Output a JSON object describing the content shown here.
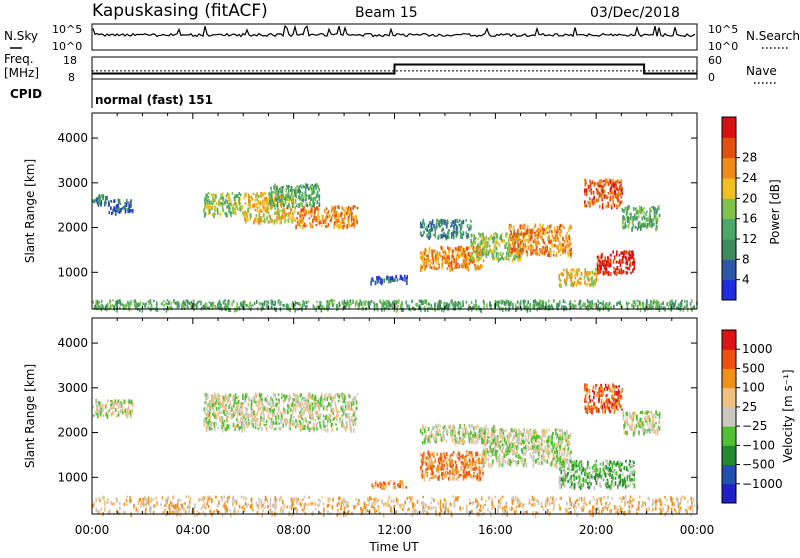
{
  "header": {
    "title": "Kapuskasing (fitACF)",
    "beam": "Beam 15",
    "date": "03/Dec/2018"
  },
  "noise_panel": {
    "left_label": "N.Sky",
    "right_label": "N.Search",
    "left_ticks": [
      "10^5",
      "10^0"
    ],
    "right_ticks": [
      "10^5",
      "10^0"
    ]
  },
  "freq_panel": {
    "left_label_1": "Freq.",
    "left_label_2": "[MHz]",
    "left_ticks": [
      "18",
      "8"
    ],
    "right_label": "Nave",
    "right_ticks": [
      "60",
      "0"
    ],
    "cpid_label": "CPID",
    "cpid_value": "normal (fast) 151"
  },
  "colors": {
    "power": [
      "#1f2be0",
      "#2d57a8",
      "#3d8b5e",
      "#4aa86a",
      "#7dc24a",
      "#f0c020",
      "#f08a18",
      "#e0500e",
      "#d81010"
    ],
    "velocity": [
      "#dc1414",
      "#f0500f",
      "#f09015",
      "#f0c080",
      "#c8c8c0",
      "#50c030",
      "#208a30",
      "#2050b0",
      "#2020c8"
    ]
  },
  "chart_data": [
    {
      "type": "heatmap",
      "name": "power",
      "ylabel": "Slant Range [km]",
      "xlabel": "",
      "x_ticks": [
        "00:00",
        "04:00",
        "08:00",
        "12:00",
        "16:00",
        "20:00",
        "00:00"
      ],
      "xlim": [
        0,
        24
      ],
      "y_ticks": [
        1000,
        2000,
        3000,
        4000
      ],
      "ylim": [
        180,
        4560
      ],
      "colorbar": {
        "label": "Power [dB]",
        "ticks": [
          "4",
          "8",
          "12",
          "16",
          "20",
          "24",
          "28"
        ],
        "range": [
          0,
          32
        ]
      },
      "regions": [
        {
          "x0": 0.0,
          "x1": 0.6,
          "y0": 2550,
          "y1": 2750,
          "level": 2
        },
        {
          "x0": 0.6,
          "x1": 1.6,
          "y0": 2350,
          "y1": 2650,
          "level": 1
        },
        {
          "x0": 4.4,
          "x1": 6.0,
          "y0": 2300,
          "y1": 2800,
          "level": 4
        },
        {
          "x0": 6.0,
          "x1": 8.0,
          "y0": 2150,
          "y1": 2800,
          "level": 5
        },
        {
          "x0": 8.0,
          "x1": 10.5,
          "y0": 2050,
          "y1": 2500,
          "level": 6
        },
        {
          "x0": 7.0,
          "x1": 9.0,
          "y0": 2500,
          "y1": 3000,
          "level": 3
        },
        {
          "x0": 11.0,
          "x1": 12.5,
          "y0": 800,
          "y1": 950,
          "level": 1
        },
        {
          "x0": 13.0,
          "x1": 15.0,
          "y0": 1800,
          "y1": 2200,
          "level": 2
        },
        {
          "x0": 13.0,
          "x1": 15.5,
          "y0": 1100,
          "y1": 1600,
          "level": 6
        },
        {
          "x0": 15.0,
          "x1": 17.0,
          "y0": 1300,
          "y1": 1900,
          "level": 4
        },
        {
          "x0": 16.5,
          "x1": 19.0,
          "y0": 1400,
          "y1": 2100,
          "level": 6
        },
        {
          "x0": 18.5,
          "x1": 20.0,
          "y0": 750,
          "y1": 1100,
          "level": 5
        },
        {
          "x0": 19.5,
          "x1": 21.0,
          "y0": 2500,
          "y1": 3100,
          "level": 7
        },
        {
          "x0": 20.0,
          "x1": 21.5,
          "y0": 1000,
          "y1": 1500,
          "level": 8
        },
        {
          "x0": 21.0,
          "x1": 22.5,
          "y0": 2000,
          "y1": 2500,
          "level": 3
        },
        {
          "x0": 0.0,
          "x1": 24.0,
          "y0": 200,
          "y1": 400,
          "level": 3
        }
      ]
    },
    {
      "type": "heatmap",
      "name": "velocity",
      "ylabel": "Slant Range [km]",
      "xlabel": "Time UT",
      "x_ticks": [
        "00:00",
        "04:00",
        "08:00",
        "12:00",
        "16:00",
        "20:00",
        "00:00"
      ],
      "xlim": [
        0,
        24
      ],
      "y_ticks": [
        1000,
        2000,
        3000,
        4000
      ],
      "ylim": [
        180,
        4560
      ],
      "colorbar": {
        "label": "Velocity [m s⁻¹]",
        "ticks": [
          "1000",
          "500",
          "100",
          "25",
          "−25",
          "−100",
          "−500",
          "−1000"
        ],
        "range": [
          -1200,
          1200
        ]
      },
      "regions": [
        {
          "x0": 0.0,
          "x1": 1.6,
          "y0": 2400,
          "y1": 2750,
          "level": 4
        },
        {
          "x0": 4.4,
          "x1": 10.5,
          "y0": 2100,
          "y1": 2900,
          "level": 4
        },
        {
          "x0": 11.0,
          "x1": 12.5,
          "y0": 800,
          "y1": 950,
          "level": 2
        },
        {
          "x0": 13.0,
          "x1": 16.0,
          "y0": 1800,
          "y1": 2200,
          "level": 4
        },
        {
          "x0": 13.0,
          "x1": 15.5,
          "y0": 1000,
          "y1": 1600,
          "level": 2
        },
        {
          "x0": 15.5,
          "x1": 19.0,
          "y0": 1300,
          "y1": 2100,
          "level": 4
        },
        {
          "x0": 18.5,
          "x1": 21.5,
          "y0": 800,
          "y1": 1400,
          "level": 5
        },
        {
          "x0": 19.5,
          "x1": 21.0,
          "y0": 2500,
          "y1": 3100,
          "level": 1
        },
        {
          "x0": 21.0,
          "x1": 22.5,
          "y0": 2000,
          "y1": 2500,
          "level": 4
        },
        {
          "x0": 0.0,
          "x1": 24.0,
          "y0": 200,
          "y1": 600,
          "level": 3
        }
      ]
    }
  ],
  "freq_data": {
    "x": [
      0,
      12,
      12,
      21.9,
      21.9,
      24
    ],
    "freq": [
      10.5,
      10.5,
      14.6,
      14.6,
      10.5,
      10.5
    ],
    "nave_dotted": 22
  }
}
